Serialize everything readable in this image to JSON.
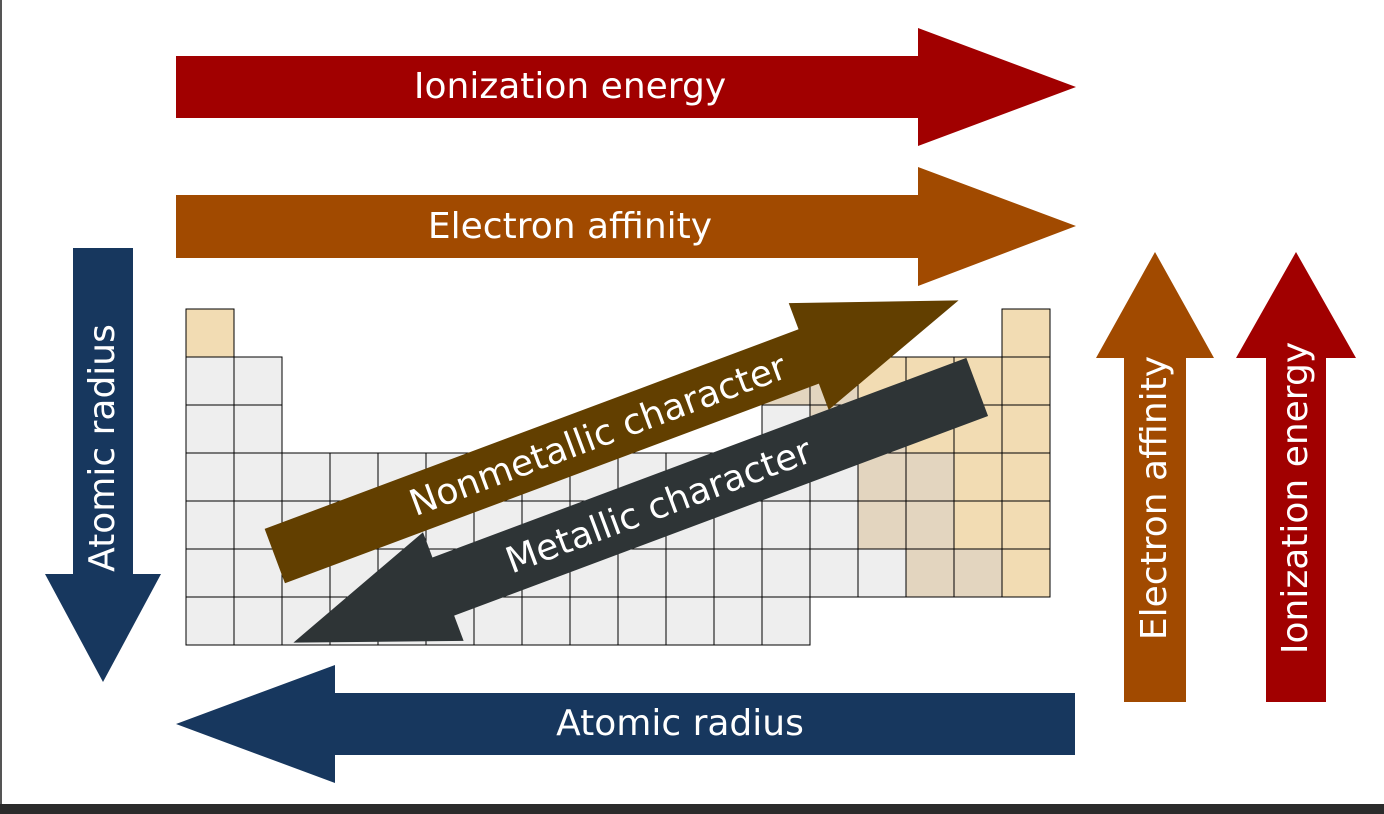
{
  "title": "",
  "colors": {
    "ionization": "#a10000",
    "affinity": "#a14a00",
    "radius": "#17375e",
    "nonmetallic": "#623f00",
    "metallic": "#2e3436",
    "cell_metal": "#eeeeee",
    "cell_nonmetal": "#f2dcb3",
    "cell_metalloid": "#e3d5bf",
    "cell_border": "#000000",
    "page_background": "#ffffff",
    "frame_background": "#2b2b2b"
  },
  "arrows": {
    "ionization_horizontal": {
      "label": "Ionization energy",
      "direction": "right"
    },
    "affinity_horizontal": {
      "label": "Electron affinity",
      "direction": "right"
    },
    "radius_horizontal": {
      "label": "Atomic radius",
      "direction": "left"
    },
    "radius_vertical": {
      "label": "Atomic radius",
      "direction": "down"
    },
    "affinity_vertical": {
      "label": "Electron affinity",
      "direction": "up"
    },
    "ionization_vertical": {
      "label": "Ionization energy",
      "direction": "up"
    },
    "nonmetallic_diagonal": {
      "label": "Nonmetallic character",
      "direction": "up-right"
    },
    "metallic_diagonal": {
      "label": "Metallic character",
      "direction": "down-left"
    }
  }
}
